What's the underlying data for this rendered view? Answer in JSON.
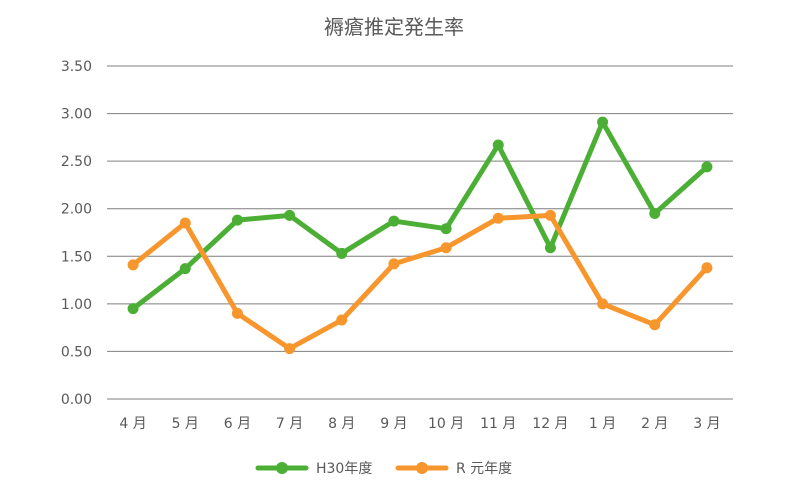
{
  "chart_data": {
    "type": "line",
    "title": "褥瘡推定発生率",
    "categories": [
      "4 月",
      "5 月",
      "6 月",
      "7 月",
      "8 月",
      "9 月",
      "10 月",
      "11 月",
      "12 月",
      "1 月",
      "2 月",
      "3 月"
    ],
    "y_ticks": [
      "0.00",
      "0.50",
      "1.00",
      "1.50",
      "2.00",
      "2.50",
      "3.00",
      "3.50"
    ],
    "ylim": [
      0,
      3.5
    ],
    "grid": true,
    "legend_position": "bottom",
    "series": [
      {
        "name": "H30年度",
        "color": "#4caf35",
        "values": [
          0.95,
          1.37,
          1.88,
          1.93,
          1.53,
          1.87,
          1.79,
          2.67,
          1.59,
          2.91,
          1.95,
          2.44
        ]
      },
      {
        "name": "R 元年度",
        "color": "#f7962c",
        "values": [
          1.41,
          1.85,
          0.9,
          0.53,
          0.83,
          1.42,
          1.59,
          1.9,
          1.93,
          1.0,
          0.78,
          1.38
        ]
      }
    ]
  }
}
